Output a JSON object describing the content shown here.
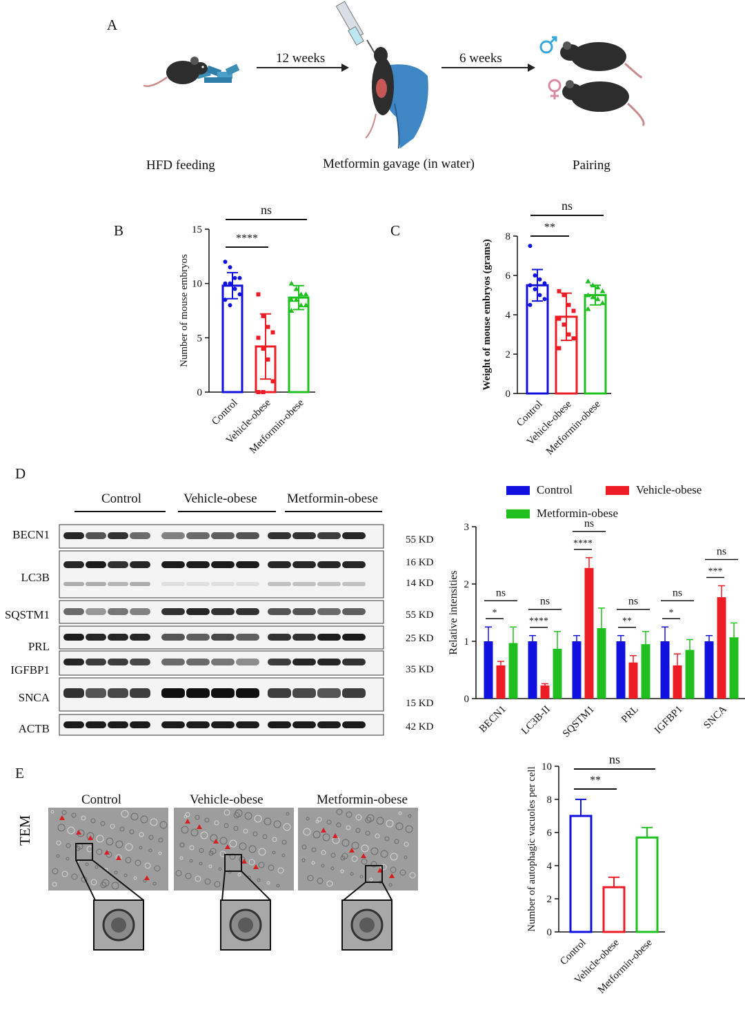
{
  "colors": {
    "control": "#1010e0",
    "vehicle": "#ee1c24",
    "metformin": "#1fc01f",
    "text": "#111111"
  },
  "icons": [
    "mouse-icon",
    "syringe-icon",
    "food-pellets-icon",
    "hand-icon",
    "male-symbol-icon",
    "female-symbol-icon"
  ],
  "panelA": {
    "letter": "A",
    "arrow1_label": "12 weeks",
    "arrow2_label": "6 weeks",
    "step1": "HFD feeding",
    "step2": "Metformin gavage (in water)",
    "step3": "Pairing"
  },
  "panelB": {
    "letter": "B"
  },
  "panelC": {
    "letter": "C"
  },
  "panelD": {
    "letter": "D",
    "groups": [
      "Control",
      "Vehicle-obese",
      "Metformin-obese"
    ],
    "blot_rows": [
      "BECN1",
      "LC3B",
      "SQSTM1",
      "PRL",
      "IGFBP1",
      "SNCA",
      "ACTB"
    ],
    "kd_labels": [
      "55 KD",
      "16 KD",
      "14 KD",
      "55 KD",
      "25 KD",
      "35 KD",
      "15 KD",
      "42 KD"
    ],
    "legend": [
      "Control",
      "Vehicle-obese",
      "Metformin-obese"
    ]
  },
  "panelE": {
    "letter": "E",
    "method": "TEM",
    "groups": [
      "Control",
      "Vehicle-obese",
      "Metformin-obese"
    ]
  },
  "chart_data": [
    {
      "id": "B",
      "type": "bar",
      "categories": [
        "Control",
        "Vehicle-obese",
        "Metformin-obese"
      ],
      "values": [
        9.8,
        4.2,
        8.7
      ],
      "errors": [
        1.2,
        3.0,
        1.1
      ],
      "points": [
        [
          12.0,
          11.5,
          10.5,
          10.5,
          10.0,
          10.0,
          9.5,
          9.0,
          8.5,
          8.0
        ],
        [
          9.0,
          7.0,
          6.0,
          5.5,
          5.0,
          4.0,
          3.0,
          1.0,
          0.0,
          0.0
        ],
        [
          10.0,
          9.5,
          9.0,
          9.0,
          8.5,
          8.5,
          8.0,
          8.0,
          7.5
        ]
      ],
      "ylabel": "Number of mouse embryos",
      "ylim": [
        0,
        15
      ],
      "yticks": [
        0,
        5,
        10,
        15
      ],
      "brackets": [
        {
          "from": 0,
          "to": 1,
          "label": "****"
        },
        {
          "from": 0,
          "to": 2,
          "label": "ns"
        }
      ]
    },
    {
      "id": "C",
      "type": "bar",
      "categories": [
        "Control",
        "Vehicle-obese",
        "Metformin-obese"
      ],
      "values": [
        5.5,
        3.9,
        5.0
      ],
      "errors": [
        0.8,
        1.2,
        0.5
      ],
      "points": [
        [
          7.5,
          6.0,
          5.8,
          5.6,
          5.5,
          5.3,
          5.0,
          4.8,
          4.5
        ],
        [
          5.2,
          5.0,
          4.5,
          4.2,
          3.8,
          3.5,
          3.0,
          2.8,
          2.3
        ],
        [
          5.7,
          5.5,
          5.4,
          5.2,
          5.0,
          4.9,
          4.8,
          4.6,
          4.3
        ]
      ],
      "ylabel": "Weight of mouse embryos (grams)",
      "ylim": [
        0,
        8
      ],
      "yticks": [
        0,
        2,
        4,
        6,
        8
      ],
      "brackets": [
        {
          "from": 0,
          "to": 1,
          "label": "**"
        },
        {
          "from": 0,
          "to": 2,
          "label": "ns"
        }
      ]
    },
    {
      "id": "D",
      "type": "bar",
      "categories": [
        "BECN1",
        "LC3B-II",
        "SQSTM1",
        "PRL",
        "IGFBP1",
        "SNCA"
      ],
      "series": [
        {
          "name": "Control",
          "values": [
            1.0,
            1.0,
            1.0,
            1.0,
            1.0,
            1.0
          ],
          "errors": [
            0.25,
            0.1,
            0.1,
            0.1,
            0.25,
            0.1
          ]
        },
        {
          "name": "Vehicle-obese",
          "values": [
            0.58,
            0.23,
            2.28,
            0.63,
            0.58,
            1.77
          ],
          "errors": [
            0.07,
            0.03,
            0.18,
            0.12,
            0.2,
            0.2
          ]
        },
        {
          "name": "Metformin-obese",
          "values": [
            0.97,
            0.87,
            1.23,
            0.95,
            0.85,
            1.07
          ],
          "errors": [
            0.28,
            0.3,
            0.35,
            0.22,
            0.18,
            0.25
          ]
        }
      ],
      "ylabel": "Relative intensities",
      "ylim": [
        0,
        3
      ],
      "yticks": [
        0,
        1,
        2,
        3
      ],
      "legend_position": "top",
      "brackets": [
        [
          "*",
          "ns"
        ],
        [
          "****",
          "ns"
        ],
        [
          "****",
          "ns"
        ],
        [
          "**",
          "ns"
        ],
        [
          "*",
          "ns"
        ],
        [
          "***",
          "ns"
        ]
      ]
    },
    {
      "id": "E",
      "type": "bar",
      "categories": [
        "Control",
        "Vehicle-obese",
        "Metformin-obese"
      ],
      "values": [
        7.0,
        2.7,
        5.7
      ],
      "errors": [
        1.0,
        0.6,
        0.6
      ],
      "ylabel": "Number of autophagic vacuoles  per cell",
      "ylim": [
        0,
        10
      ],
      "yticks": [
        0,
        2,
        4,
        6,
        8,
        10
      ],
      "brackets": [
        {
          "from": 0,
          "to": 1,
          "label": "**"
        },
        {
          "from": 0,
          "to": 2,
          "label": "ns"
        }
      ]
    }
  ]
}
